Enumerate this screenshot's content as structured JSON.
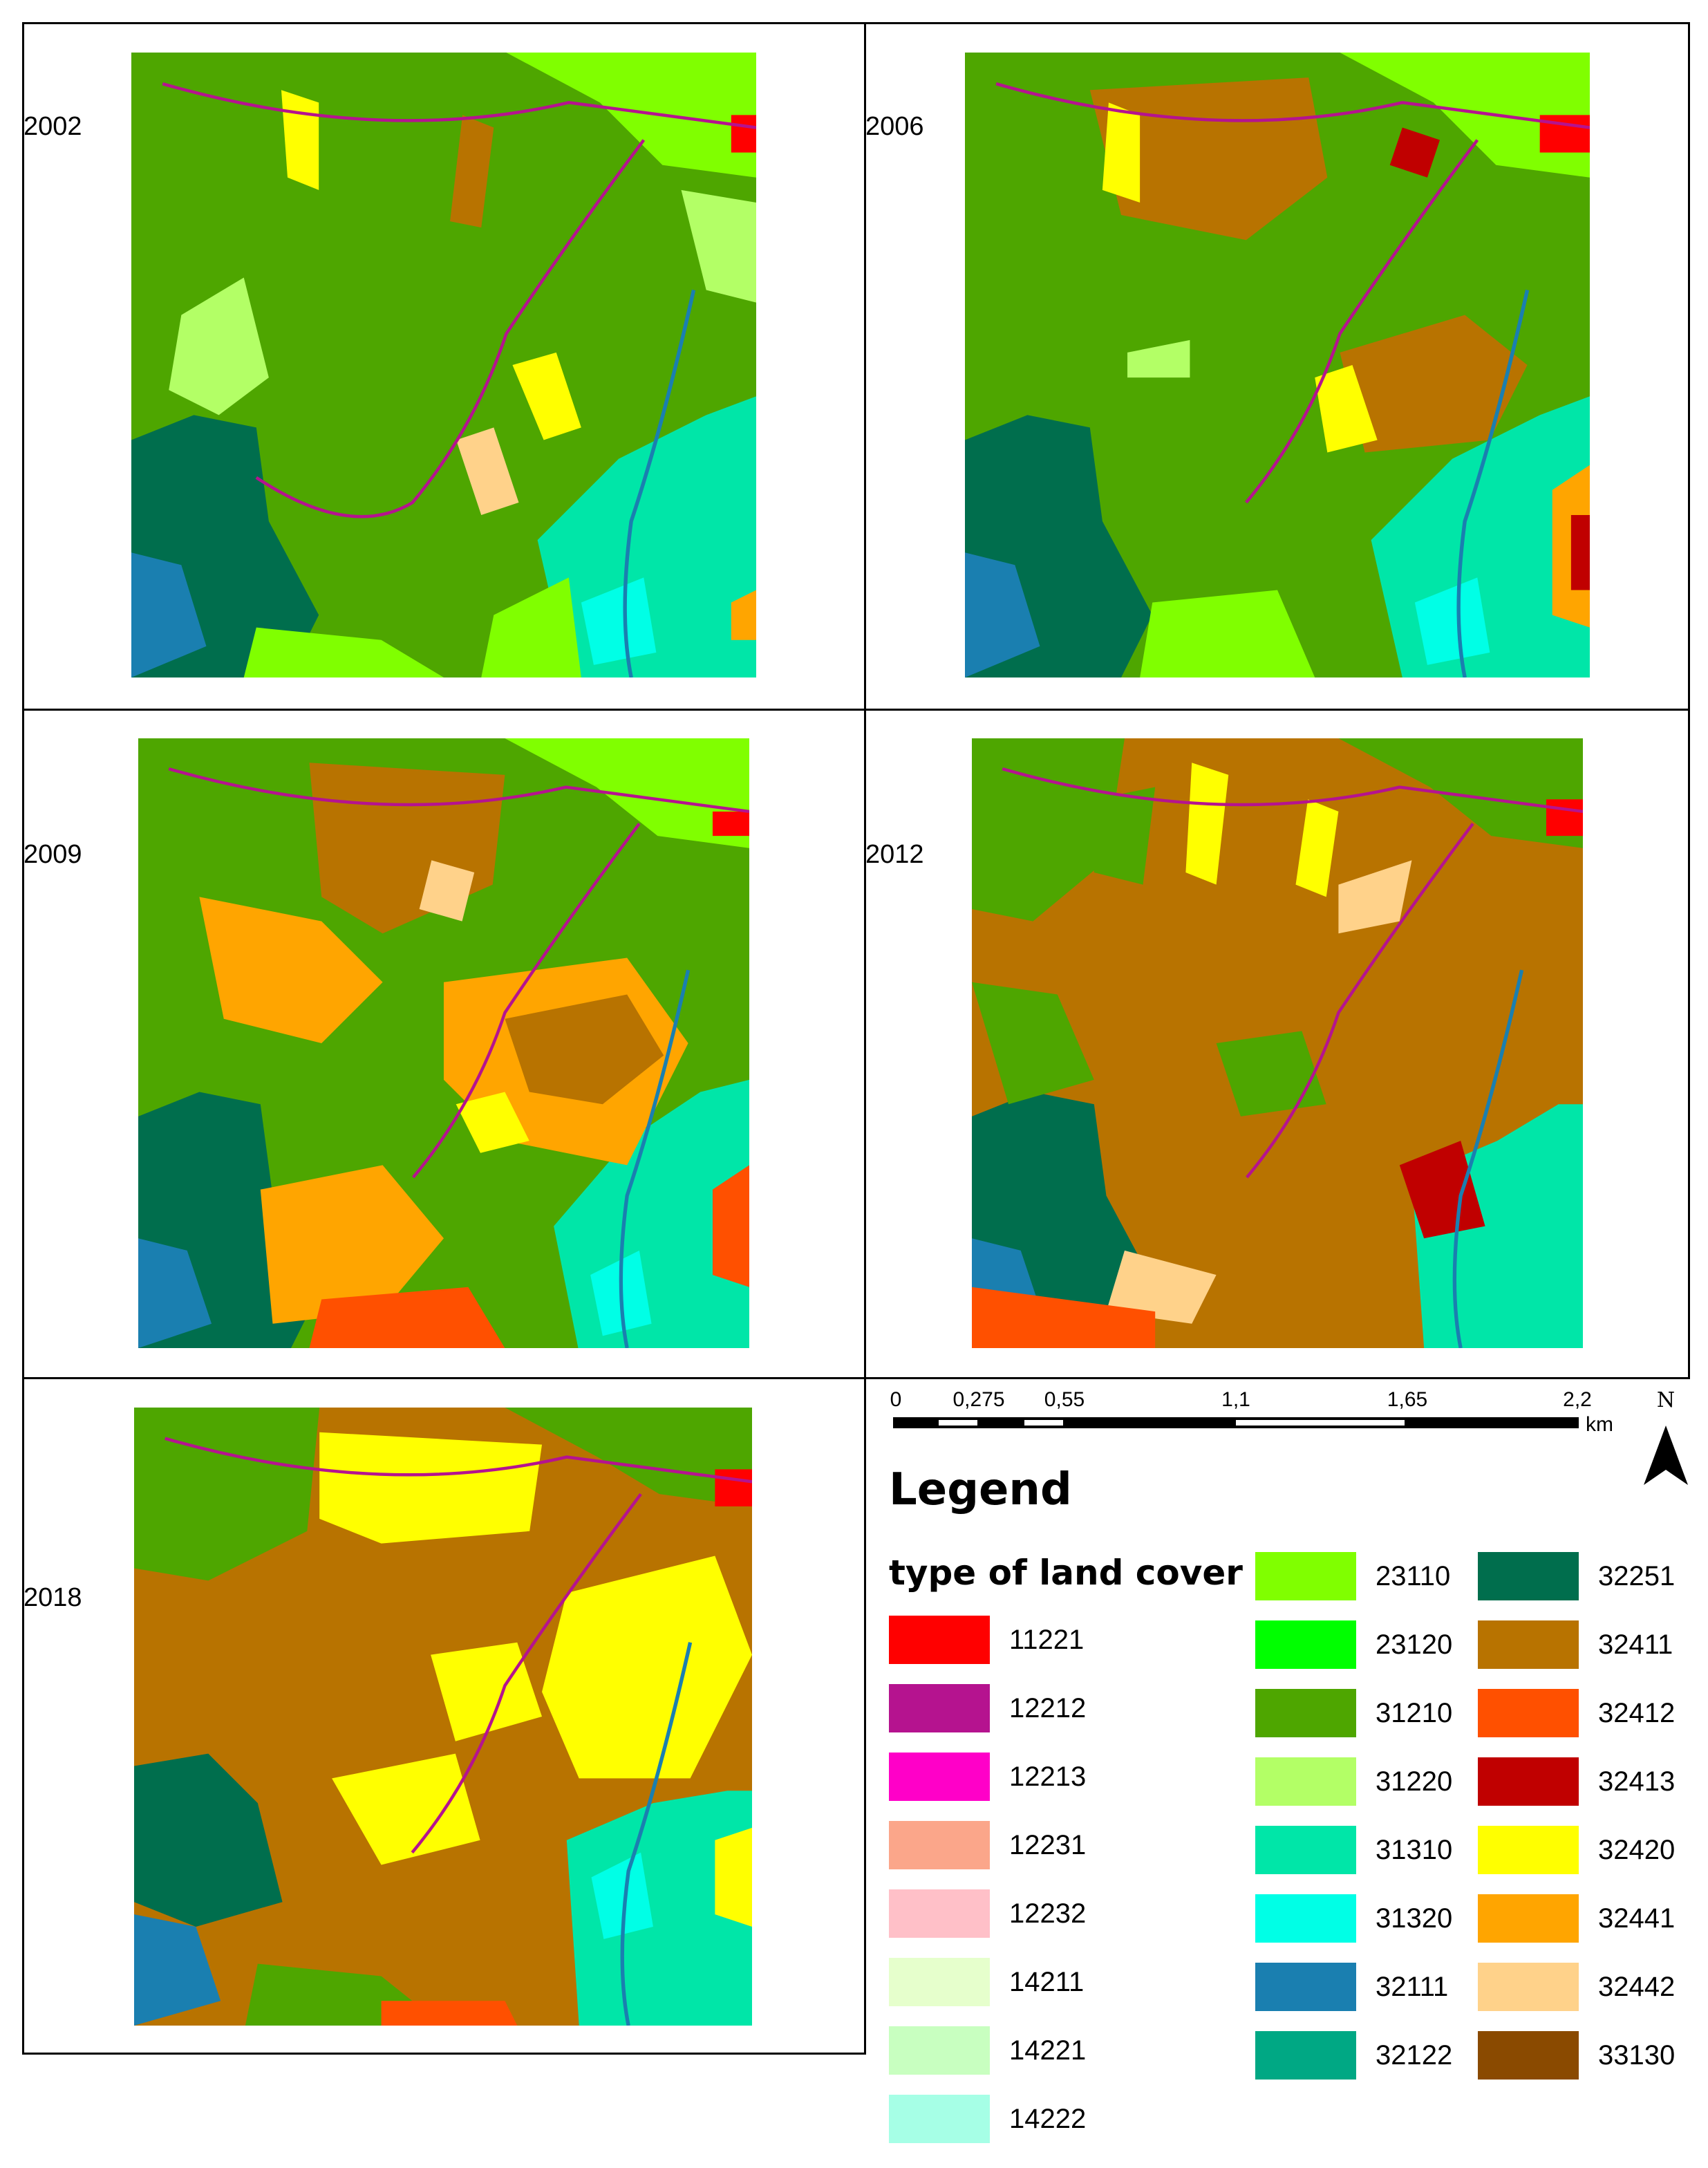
{
  "panels": [
    {
      "year": "2002"
    },
    {
      "year": "2006"
    },
    {
      "year": "2009"
    },
    {
      "year": "2012"
    },
    {
      "year": "2018"
    }
  ],
  "scale_bar": {
    "labels": [
      "0",
      "0,275",
      "0,55",
      "1,1",
      "1,65",
      "2,2"
    ],
    "unit": "km"
  },
  "north_arrow": {
    "label": "N",
    "icon": "north-arrow-icon"
  },
  "legend": {
    "title": "Legend",
    "subtitle": "type of land cover",
    "items": [
      {
        "code": "11221",
        "color": "#ff0000"
      },
      {
        "code": "12212",
        "color": "#b5138f"
      },
      {
        "code": "12213",
        "color": "#ff00c8"
      },
      {
        "code": "12231",
        "color": "#fba68a"
      },
      {
        "code": "12232",
        "color": "#ffc0c8"
      },
      {
        "code": "14211",
        "color": "#e6ffcc"
      },
      {
        "code": "14221",
        "color": "#c8ffc0"
      },
      {
        "code": "14222",
        "color": "#a6ffe6"
      },
      {
        "code": "23110",
        "color": "#80ff00"
      },
      {
        "code": "23120",
        "color": "#00ff00"
      },
      {
        "code": "31210",
        "color": "#4ea600"
      },
      {
        "code": "31220",
        "color": "#b3ff66"
      },
      {
        "code": "31310",
        "color": "#00e6a8"
      },
      {
        "code": "31320",
        "color": "#00ffe6"
      },
      {
        "code": "32111",
        "color": "#1a7fb0"
      },
      {
        "code": "32122",
        "color": "#00a884"
      },
      {
        "code": "32251",
        "color": "#006e4d"
      },
      {
        "code": "32411",
        "color": "#b87300"
      },
      {
        "code": "32412",
        "color": "#ff5000"
      },
      {
        "code": "32413",
        "color": "#c00000"
      },
      {
        "code": "32420",
        "color": "#ffff00"
      },
      {
        "code": "32441",
        "color": "#ffa500"
      },
      {
        "code": "32442",
        "color": "#ffd28a"
      },
      {
        "code": "33130",
        "color": "#8a4a00"
      }
    ]
  }
}
